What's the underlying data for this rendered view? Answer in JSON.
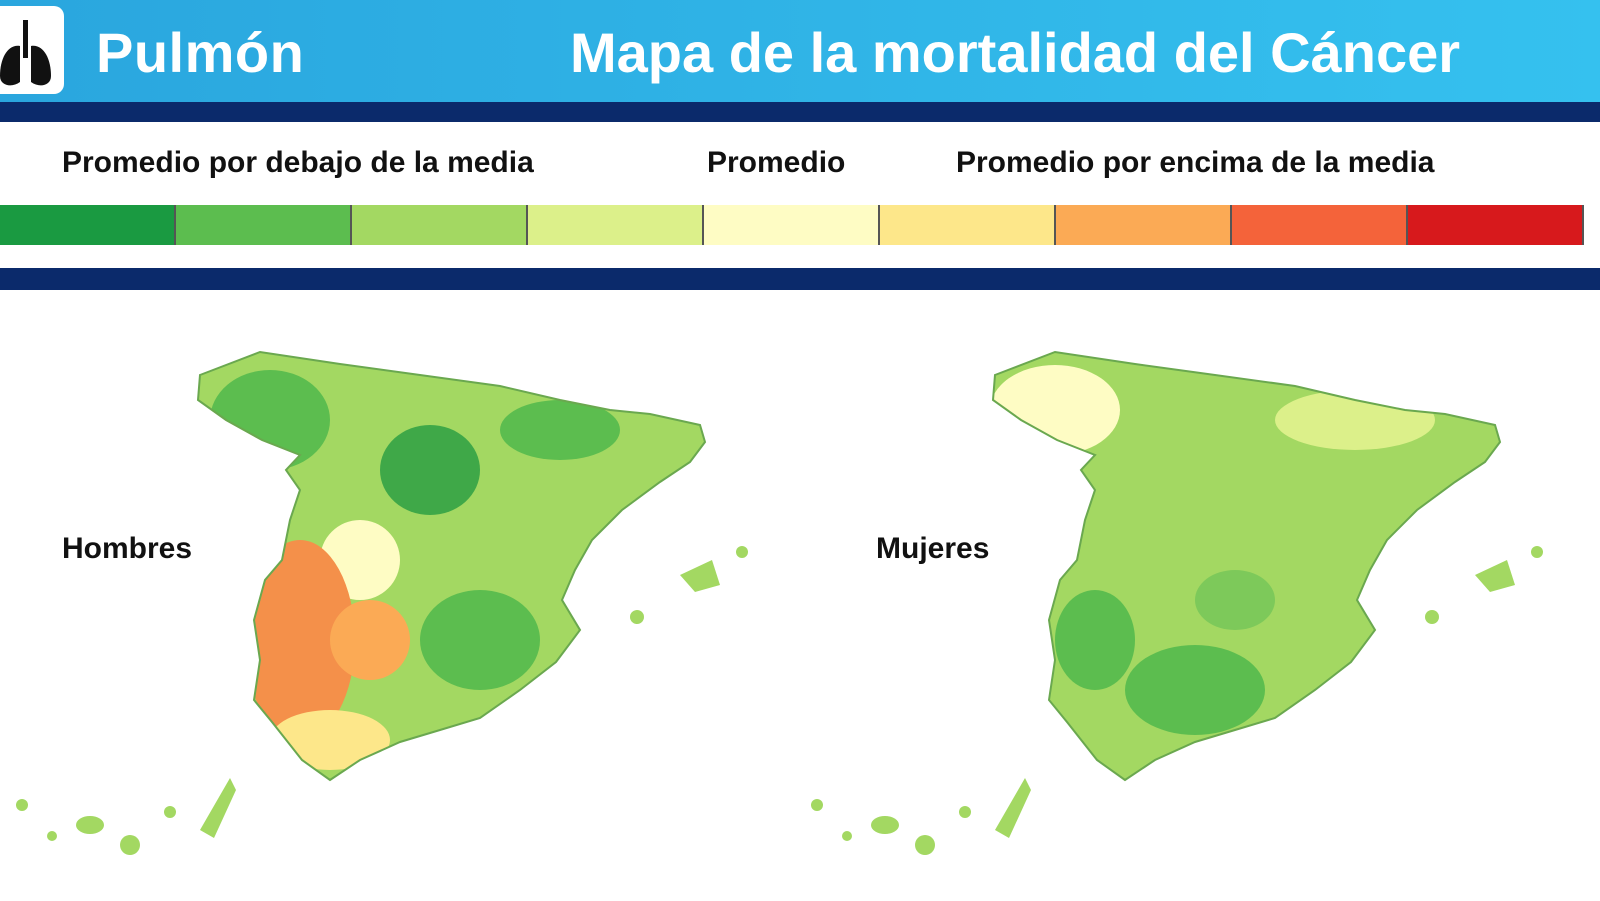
{
  "header": {
    "icon": "lungs-icon",
    "topic": "Pulmón",
    "title": "Mapa de la mortalidad del Cáncer"
  },
  "legend": {
    "below_label": "Promedio por debajo de la media",
    "average_label": "Promedio",
    "above_label": "Promedio por encima de la media",
    "colors": [
      "#1a9a41",
      "#5cbd4f",
      "#a3d862",
      "#dcf08a",
      "#fefcc4",
      "#fde78a",
      "#fbaa55",
      "#f4633a",
      "#d7191c"
    ]
  },
  "maps": [
    {
      "label": "Hombres",
      "dominant_colors": [
        "#a3d862",
        "#5cbd4f",
        "#fefcc4"
      ],
      "high_region_color": "#f4904a"
    },
    {
      "label": "Mujeres",
      "dominant_colors": [
        "#a3d862",
        "#5cbd4f",
        "#dcf08a"
      ]
    }
  ],
  "colors": {
    "header_blue": "#2aa6de",
    "navy": "#0b2a6b"
  }
}
